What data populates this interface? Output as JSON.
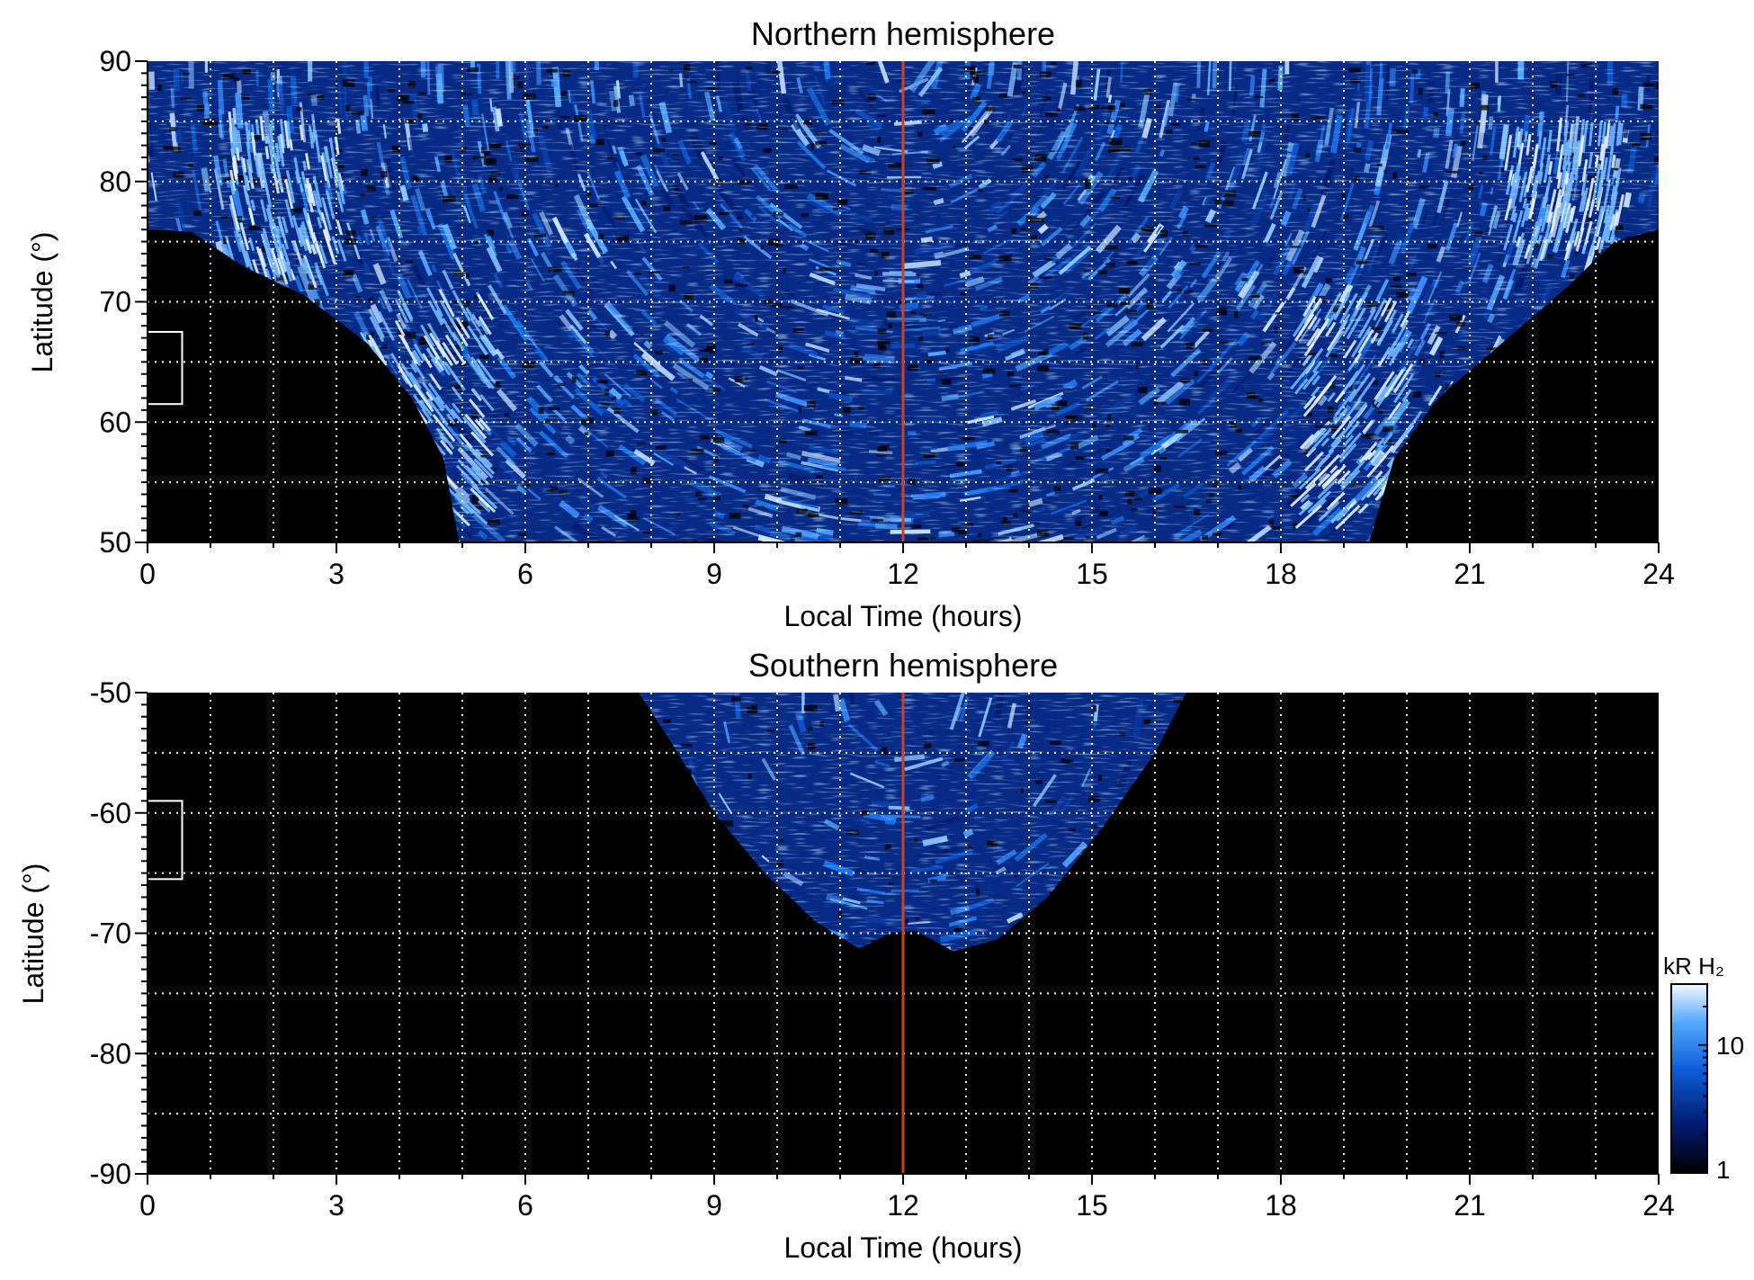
{
  "chart_data": [
    {
      "type": "heatmap",
      "title": "Northern hemisphere",
      "xlabel": "Local Time (hours)",
      "ylabel": "Latitude (°)",
      "xlim": [
        0,
        24
      ],
      "ylim": [
        50,
        90
      ],
      "xticks": [
        0,
        3,
        6,
        9,
        12,
        15,
        18,
        21,
        24
      ],
      "xtick_labels": [
        "0",
        "3",
        "6",
        "9",
        "12",
        "15",
        "18",
        "21",
        "24"
      ],
      "yticks": [
        50,
        60,
        70,
        80,
        90
      ],
      "ytick_labels": [
        "50",
        "60",
        "70",
        "80",
        "90"
      ],
      "grid": true,
      "grid_x_step": 1,
      "grid_y_step": 5,
      "reference_line": {
        "x": 12,
        "color": "#d0401c"
      },
      "marker_box": {
        "x": [
          0,
          0.55
        ],
        "y": [
          61.5,
          67.5
        ]
      },
      "coverage_boundary": {
        "lt": [
          0,
          0.7,
          1.5,
          2.5,
          3.5,
          4.2,
          4.7,
          4.95,
          5.5,
          8,
          12,
          16,
          18.5,
          19.4,
          19.8,
          20.5,
          21.5,
          22.5,
          23.3,
          24
        ],
        "lat": [
          76,
          75.8,
          73,
          70.5,
          66.5,
          62,
          57,
          50,
          50,
          50,
          50,
          50,
          50,
          50,
          57,
          62,
          66.5,
          71,
          75,
          76
        ]
      },
      "bright_bands": [
        {
          "lt_center": 2.2,
          "lat": [
            72,
            85
          ]
        },
        {
          "lt_center": 4.5,
          "lat": [
            52,
            70
          ]
        },
        {
          "lt_center": 19.2,
          "lat": [
            52,
            70
          ]
        },
        {
          "lt_center": 22.5,
          "lat": [
            74,
            84
          ]
        }
      ]
    },
    {
      "type": "heatmap",
      "title": "Southern hemisphere",
      "xlabel": "Local Time (hours)",
      "ylabel": "Latitude (°)",
      "xlim": [
        0,
        24
      ],
      "ylim": [
        -90,
        -50
      ],
      "xticks": [
        0,
        3,
        6,
        9,
        12,
        15,
        18,
        21,
        24
      ],
      "xtick_labels": [
        "0",
        "3",
        "6",
        "9",
        "12",
        "15",
        "18",
        "21",
        "24"
      ],
      "yticks": [
        -90,
        -80,
        -70,
        -60,
        -50
      ],
      "ytick_labels": [
        "-90",
        "-80",
        "-70",
        "-60",
        "-50"
      ],
      "grid": true,
      "grid_x_step": 1,
      "grid_y_step": 5,
      "reference_line": {
        "x": 12,
        "color": "#d0401c"
      },
      "marker_box": {
        "x": [
          0,
          0.55
        ],
        "y": [
          -65.5,
          -59
        ]
      },
      "coverage_boundary": {
        "lt": [
          7.8,
          8.3,
          9,
          9.8,
          10.6,
          11.3,
          11.8,
          12.2,
          12.8,
          13.5,
          14.3,
          15.2,
          16,
          16.5
        ],
        "lat": [
          -50,
          -54,
          -60,
          -65,
          -69,
          -71.3,
          -70,
          -69.8,
          -71.5,
          -70.5,
          -67,
          -61,
          -55,
          -50
        ]
      },
      "colorbar": {
        "label": "kR H₂",
        "scale": "log",
        "range": [
          1,
          30
        ],
        "ticks": [
          1,
          10
        ],
        "tick_labels": [
          "1",
          "10"
        ],
        "colors": [
          "#000000",
          "#001a6e",
          "#0d5dd8",
          "#55aaff",
          "#f2f8ff"
        ]
      }
    }
  ]
}
